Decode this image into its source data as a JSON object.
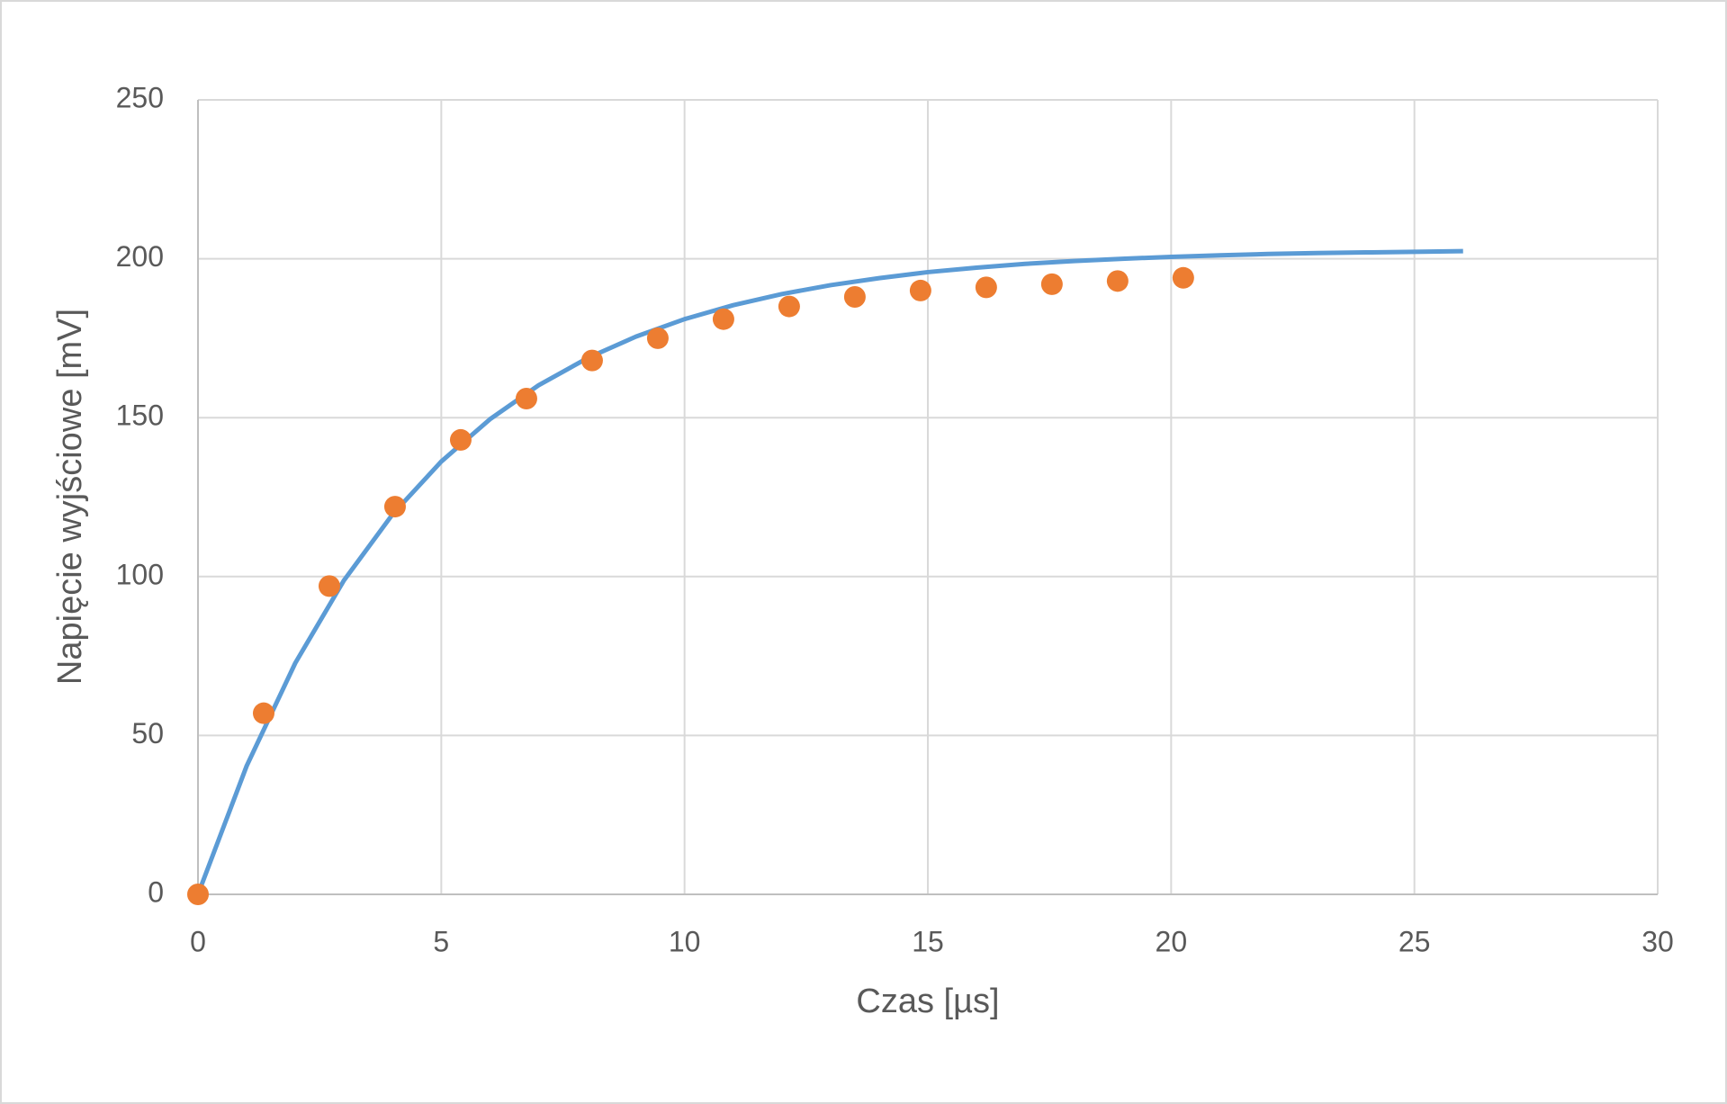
{
  "chart_data": {
    "type": "scatter",
    "x_label": "Czas [µs]",
    "y_label": "Napięcie wyjściowe [mV]",
    "xlim": [
      0,
      30
    ],
    "xticks": [
      0,
      5,
      10,
      15,
      20,
      25,
      30
    ],
    "ylim": [
      0,
      250
    ],
    "yticks": [
      0,
      50,
      100,
      150,
      200,
      250
    ],
    "grid": true,
    "series": [
      {
        "type": "line",
        "color": "#5b9bd5",
        "x": [
          0,
          1,
          2,
          3,
          4,
          5,
          6,
          7,
          8,
          9,
          10,
          11,
          12,
          13,
          14,
          15,
          16,
          17,
          18,
          19,
          20,
          21,
          22,
          23,
          24,
          25,
          26
        ],
        "values": [
          0,
          40.4,
          72.8,
          98.8,
          119.6,
          136.2,
          149.5,
          160.2,
          168.7,
          175.5,
          181.0,
          185.4,
          188.9,
          191.7,
          193.9,
          195.8,
          197.2,
          198.4,
          199.3,
          200.0,
          200.6,
          201.1,
          201.5,
          201.8,
          202.0,
          202.2,
          202.4
        ]
      },
      {
        "type": "scatter",
        "color": "#ed7d31",
        "x": [
          0,
          1.35,
          2.7,
          4.05,
          5.4,
          6.75,
          8.1,
          9.45,
          10.8,
          12.15,
          13.5,
          14.85,
          16.2,
          17.55,
          18.9,
          20.25
        ],
        "values": [
          0,
          57,
          97,
          122,
          143,
          156,
          168,
          175,
          181,
          185,
          188,
          190,
          191,
          192,
          193,
          194
        ]
      }
    ]
  }
}
